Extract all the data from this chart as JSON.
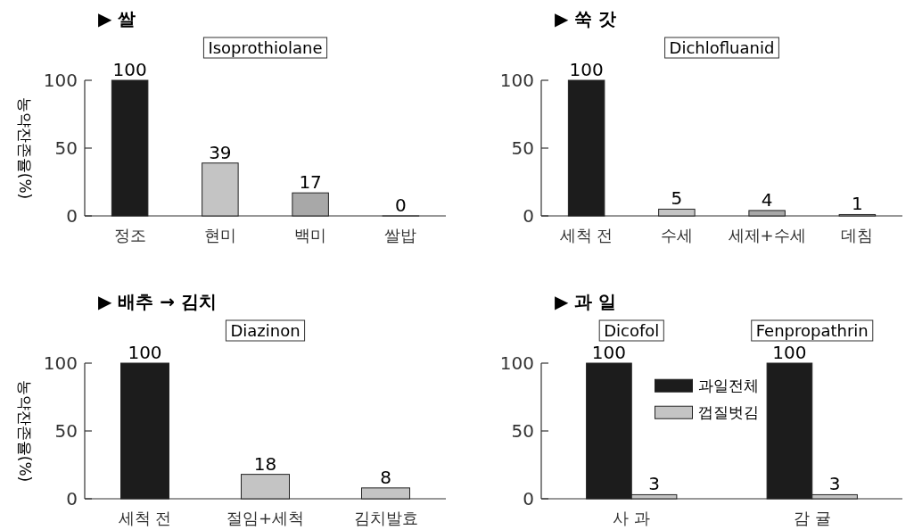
{
  "chart_data": [
    {
      "type": "bar",
      "title": "▶ 쌀",
      "ylabel": "농약잔존율(%)",
      "categories": [
        "정조",
        "현미",
        "백미",
        "쌀밥"
      ],
      "values": [
        100,
        39,
        17,
        0
      ],
      "colors": [
        "#1c1c1c",
        "#c4c4c4",
        "#a8a8a8",
        "#c4c4c4"
      ],
      "ylim": [
        0,
        100
      ],
      "yticks": [
        0,
        50,
        100
      ],
      "data_labels": true,
      "annotations": [
        "Isoprothiolane"
      ]
    },
    {
      "type": "bar",
      "title": "▶ 쑥 갓",
      "categories": [
        "세척 전",
        "수세",
        "세제+수세",
        "데침"
      ],
      "values": [
        100,
        5,
        4,
        1
      ],
      "colors": [
        "#1c1c1c",
        "#c4c4c4",
        "#a8a8a8",
        "#a8a8a8"
      ],
      "ylim": [
        0,
        100
      ],
      "yticks": [
        0,
        50,
        100
      ],
      "data_labels": true,
      "annotations": [
        "Dichlofluanid"
      ]
    },
    {
      "type": "bar",
      "title": "▶ 배추 → 김치",
      "ylabel": "농약잔존율(%)",
      "categories": [
        "세척 전",
        "절임+세척",
        "김치발효"
      ],
      "values": [
        100,
        18,
        8
      ],
      "colors": [
        "#1c1c1c",
        "#c4c4c4",
        "#c4c4c4"
      ],
      "ylim": [
        0,
        100
      ],
      "yticks": [
        0,
        50,
        100
      ],
      "data_labels": true,
      "annotations": [
        "Diazinon"
      ]
    },
    {
      "type": "bar",
      "title": "▶ 과 일",
      "categories": [
        "사 과",
        "감 귤"
      ],
      "series": [
        {
          "name": "과일전체",
          "color": "#1c1c1c",
          "values": [
            100,
            100
          ]
        },
        {
          "name": "껍질벗김",
          "color": "#c4c4c4",
          "values": [
            3,
            3
          ]
        }
      ],
      "ylim": [
        0,
        100
      ],
      "yticks": [
        0,
        50,
        100
      ],
      "data_labels": true,
      "legend": "top",
      "annotations": [
        "Dicofol",
        "Fenpropathrin"
      ]
    }
  ]
}
